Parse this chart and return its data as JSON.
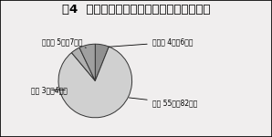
{
  "title": "図4  基本診療料への検査・処置等の包括化",
  "labels": [
    "無回答 4人（6％）",
    "反対 55人（82％）",
    "賛成 3人（4％）",
    "その他 5人（7％）"
  ],
  "values": [
    6,
    82,
    4,
    7
  ],
  "colors": [
    "#909090",
    "#d0d0d0",
    "#b0b0b0",
    "#a0a0a0"
  ],
  "startangle": 90,
  "background_color": "#f0eeee",
  "title_fontsize": 9.5,
  "label_fontsize": 5.5
}
